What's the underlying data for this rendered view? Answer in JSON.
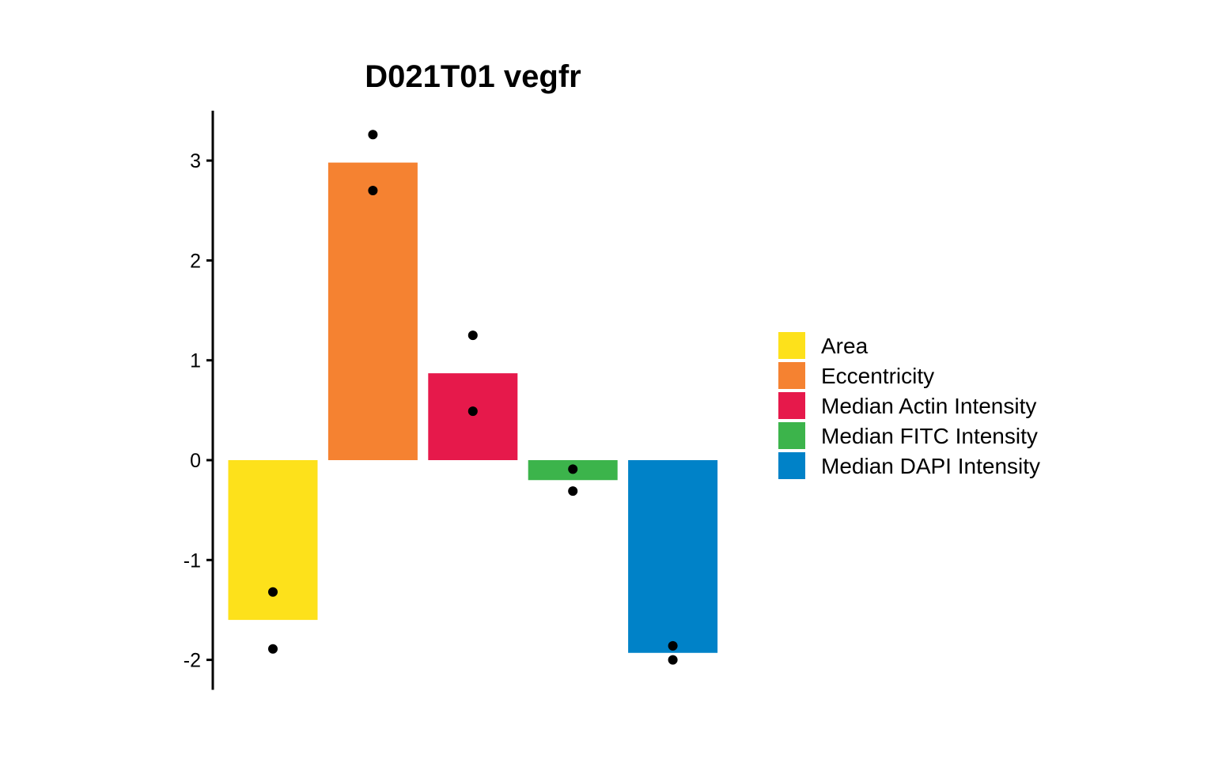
{
  "chart_data": {
    "type": "bar",
    "title": "D021T01 vegfr",
    "xlabel": "",
    "ylabel": "",
    "ylim": [
      -2.3,
      3.5
    ],
    "yticks": [
      -2,
      -1,
      0,
      1,
      2,
      3
    ],
    "grid": false,
    "legend_position": "right",
    "categories": [
      "Area",
      "Eccentricity",
      "Median Actin Intensity",
      "Median FITC Intensity",
      "Median DAPI Intensity"
    ],
    "values": [
      -1.6,
      2.98,
      0.87,
      -0.2,
      -1.93
    ],
    "points": [
      [
        -1.32,
        -1.89
      ],
      [
        3.26,
        2.7
      ],
      [
        1.25,
        0.49
      ],
      [
        -0.09,
        -0.31
      ],
      [
        -1.86,
        -2.0
      ]
    ],
    "colors": [
      "#FDE11B",
      "#F58231",
      "#E6194B",
      "#3CB44B",
      "#0082C8"
    ],
    "point_color": "#000000"
  }
}
